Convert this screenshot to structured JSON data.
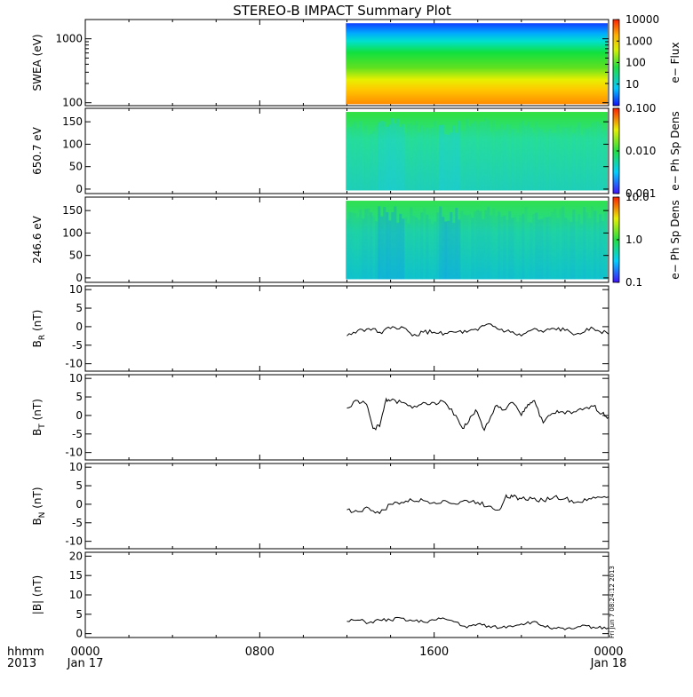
{
  "title": "STEREO-B IMPACT Summary Plot",
  "stamp": "Fri Jun  7 08:24:12 2013",
  "time_axis": {
    "row_label_top": "hhmm",
    "row_label_bottom": "2013",
    "ticks": [
      {
        "hours": 0,
        "label": "0000",
        "sublabel": "Jan 17"
      },
      {
        "hours": 8,
        "label": "0800",
        "sublabel": ""
      },
      {
        "hours": 16,
        "label": "1600",
        "sublabel": ""
      },
      {
        "hours": 24,
        "label": "0000",
        "sublabel": "Jan 18"
      }
    ],
    "range_hours": [
      0,
      24
    ],
    "data_start_hours": 11.95
  },
  "colorbars": [
    {
      "label": "e− Flux",
      "ticks": [
        "10000",
        "1000",
        "100",
        "10"
      ]
    },
    {
      "label": "e− Ph Sp Dens",
      "ticks": [
        "0.100",
        "0.010",
        "0.001"
      ]
    },
    {
      "label": "e− Ph Sp Dens",
      "ticks": [
        "10.0",
        "1.0",
        "0.1"
      ]
    }
  ],
  "chart_data": [
    {
      "type": "heatmap",
      "ylabel": "SWEA (eV)",
      "y_scale": "log",
      "ylim": [
        90,
        2000
      ],
      "yticks": [
        "1000",
        "100"
      ],
      "colorbar_label": "e− Flux",
      "colorbar_range": [
        1,
        10000
      ],
      "description_of_values": "flux decreases with energy; ~3000 near 100 eV, ~10 near 1700 eV"
    },
    {
      "type": "heatmap",
      "ylabel": "650.7 eV",
      "ylim": [
        -10,
        180
      ],
      "yticks": [
        "150",
        "100",
        "50",
        "0"
      ],
      "colorbar_label": "e− Ph Sp Dens",
      "colorbar_range": [
        0.001,
        0.1
      ]
    },
    {
      "type": "heatmap",
      "ylabel": "246.6 eV",
      "ylim": [
        -10,
        180
      ],
      "yticks": [
        "150",
        "100",
        "50",
        "0"
      ],
      "colorbar_label": "e− Ph Sp Dens",
      "colorbar_range": [
        0.1,
        10
      ]
    },
    {
      "type": "line",
      "ylabel_main": "B",
      "ylabel_sub": "R",
      "ylabel_unit": " (nT)",
      "ylim": [
        -12,
        11
      ],
      "yticks": [
        "10",
        "5",
        "0",
        "-5",
        "-10"
      ],
      "x": [
        12.0,
        12.5,
        13.0,
        13.5,
        14.0,
        14.5,
        15.0,
        15.5,
        16.0,
        16.5,
        17.0,
        17.5,
        18.0,
        18.5,
        19.0,
        19.5,
        20.0,
        20.5,
        21.0,
        21.5,
        22.0,
        22.5,
        23.0,
        23.5,
        24.0
      ],
      "y": [
        -2.5,
        -1.0,
        -0.5,
        -1.5,
        -0.5,
        0.0,
        -2.5,
        -1.5,
        -1.5,
        -1.8,
        -1.5,
        -1.5,
        -1.0,
        0.8,
        -0.8,
        -1.5,
        -2.5,
        -0.8,
        -1.5,
        -0.5,
        -1.0,
        -2.0,
        -0.5,
        -1.0,
        -2.0
      ]
    },
    {
      "type": "line",
      "ylabel_main": "B",
      "ylabel_sub": "T",
      "ylabel_unit": " (nT)",
      "ylim": [
        -12,
        11
      ],
      "yticks": [
        "10",
        "5",
        "0",
        "-5",
        "-10"
      ],
      "x": [
        12.0,
        12.5,
        12.9,
        13.2,
        13.5,
        13.8,
        14.0,
        14.5,
        15.0,
        15.5,
        16.0,
        16.5,
        17.0,
        17.3,
        17.6,
        17.9,
        18.3,
        18.8,
        19.2,
        19.6,
        20.0,
        20.3,
        20.6,
        21.0,
        21.4,
        21.8,
        22.3,
        22.8,
        23.3,
        23.7,
        24.0
      ],
      "y": [
        2.0,
        4.0,
        3.0,
        -3.5,
        -3.0,
        4.5,
        4.0,
        3.5,
        2.0,
        3.5,
        3.5,
        3.5,
        0.0,
        -3.5,
        -1.5,
        1.5,
        -4.0,
        2.5,
        1.5,
        3.5,
        0.0,
        3.0,
        4.0,
        -2.0,
        0.5,
        1.0,
        0.5,
        1.5,
        2.5,
        0.5,
        -0.5
      ]
    },
    {
      "type": "line",
      "ylabel_main": "B",
      "ylabel_sub": "N",
      "ylabel_unit": " (nT)",
      "ylim": [
        -12,
        11
      ],
      "yticks": [
        "10",
        "5",
        "0",
        "-5",
        "-10"
      ],
      "x": [
        12.0,
        12.5,
        13.0,
        13.5,
        14.0,
        14.5,
        15.0,
        15.5,
        16.0,
        16.5,
        17.0,
        17.5,
        18.0,
        18.5,
        19.0,
        19.3,
        19.6,
        20.0,
        20.5,
        21.0,
        21.5,
        22.0,
        22.5,
        23.0,
        23.5,
        24.0
      ],
      "y": [
        -1.5,
        -2.0,
        -1.0,
        -2.5,
        0.0,
        0.5,
        1.0,
        1.0,
        0.5,
        1.0,
        0.0,
        1.0,
        0.5,
        -0.5,
        -1.5,
        2.5,
        2.0,
        1.5,
        1.5,
        1.0,
        2.0,
        1.5,
        0.5,
        1.0,
        2.0,
        2.0
      ]
    },
    {
      "type": "line",
      "ylabel": "|B| (nT)",
      "ylim": [
        -1,
        21
      ],
      "yticks": [
        "20",
        "15",
        "10",
        "5",
        "0"
      ],
      "x": [
        12.0,
        12.5,
        13.0,
        13.5,
        14.0,
        14.5,
        15.0,
        15.5,
        16.0,
        16.5,
        17.0,
        17.5,
        18.0,
        18.5,
        19.0,
        19.5,
        20.0,
        20.5,
        21.0,
        21.5,
        22.0,
        22.5,
        23.0,
        23.5,
        24.0
      ],
      "y": [
        3.2,
        3.5,
        2.8,
        3.5,
        3.5,
        4.0,
        3.3,
        3.0,
        3.5,
        3.8,
        3.0,
        1.5,
        2.5,
        2.0,
        1.5,
        2.0,
        2.5,
        3.0,
        2.0,
        1.5,
        1.0,
        1.5,
        2.0,
        1.5,
        1.5
      ]
    }
  ]
}
